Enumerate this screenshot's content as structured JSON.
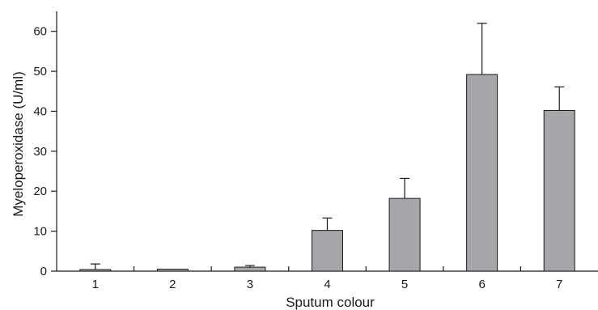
{
  "chart_data": {
    "type": "bar",
    "title": "",
    "xlabel": "Sputum colour",
    "ylabel": "Myeloperoxidase (U/ml)",
    "categories": [
      "1",
      "2",
      "3",
      "4",
      "5",
      "6",
      "7"
    ],
    "values": [
      0.4,
      0.5,
      1.0,
      10.2,
      18.2,
      49.2,
      40.2
    ],
    "error_upper": [
      1.8,
      0.5,
      1.4,
      13.3,
      23.2,
      62.0,
      46.1
    ],
    "ylim": [
      0,
      65
    ],
    "yticks": [
      0,
      10,
      20,
      30,
      40,
      50,
      60
    ],
    "grid": false,
    "legend": "none",
    "colors": {
      "bar_fill": "#a6a6aa",
      "bar_stroke": "#1a1a1a",
      "axis": "#1a1a1a"
    }
  }
}
